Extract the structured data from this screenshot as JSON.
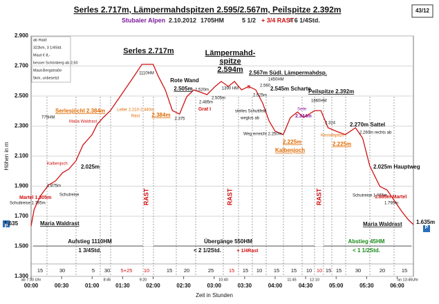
{
  "chart_data": {
    "type": "line",
    "title": "Serles 2.717m, Lämpermahdspitzen 2.595/2.567m, Peilspitze 2.392m",
    "subtitle_parts": [
      "Stubaier Alpen",
      "2.10.2012",
      "1705HM",
      "5 1/2",
      "+ 3/4 RAST",
      "= 6 1/4Std."
    ],
    "page_label": "43/12",
    "ylabel": "Höhen in m",
    "xlabel": "Zeit in Stunden",
    "color": "#d01010",
    "grid": true,
    "xlim": [
      0,
      376
    ],
    "xticks": [
      {
        "value": 0,
        "label": "00:00"
      },
      {
        "value": 30,
        "label": "00:30"
      },
      {
        "value": 60,
        "label": "01:00"
      },
      {
        "value": 90,
        "label": "01:30"
      },
      {
        "value": 120,
        "label": "02:00"
      },
      {
        "value": 150,
        "label": "02:30"
      },
      {
        "value": 180,
        "label": "03:00"
      },
      {
        "value": 210,
        "label": "03:30"
      },
      {
        "value": 240,
        "label": "04:00"
      },
      {
        "value": 270,
        "label": "04:30"
      },
      {
        "value": 300,
        "label": "05:00"
      },
      {
        "value": 330,
        "label": "05:30"
      },
      {
        "value": 360,
        "label": "06:00"
      }
    ],
    "ylim": [
      1300,
      2900
    ],
    "yticks": [
      {
        "value": 1300,
        "label": "1.300"
      },
      {
        "value": 1500,
        "label": "1.500"
      },
      {
        "value": 1700,
        "label": "1.700"
      },
      {
        "value": 1900,
        "label": "1.900"
      },
      {
        "value": 2100,
        "label": "2.100"
      },
      {
        "value": 2300,
        "label": "2.300"
      },
      {
        "value": 2500,
        "label": "2.500"
      },
      {
        "value": 2700,
        "label": "2.700"
      },
      {
        "value": 2900,
        "label": "2.900"
      }
    ],
    "x": [
      0,
      3,
      7,
      10,
      17,
      24,
      31,
      37,
      44,
      51,
      60,
      65,
      71,
      78,
      85,
      92,
      99,
      109,
      120,
      125,
      132,
      139,
      146,
      153,
      160,
      166,
      173,
      181,
      187,
      194,
      200,
      207,
      214,
      221,
      228,
      234,
      240,
      248,
      255,
      262,
      268,
      279,
      285,
      292,
      300,
      309,
      319,
      326,
      333,
      343,
      350,
      357,
      364,
      371,
      376
    ],
    "values": [
      1635,
      1746,
      1805,
      1843,
      1907,
      1935,
      1990,
      2013,
      2068,
      2174,
      2243,
      2312,
      2357,
      2403,
      2472,
      2541,
      2610,
      2711,
      2711,
      2633,
      2541,
      2403,
      2380,
      2495,
      2541,
      2527,
      2509,
      2564,
      2597,
      2564,
      2597,
      2541,
      2564,
      2541,
      2449,
      2334,
      2266,
      2243,
      2357,
      2394,
      2357,
      2403,
      2403,
      2289,
      2266,
      2243,
      2289,
      2220,
      2036,
      1898,
      1875,
      1806,
      1737,
      1677,
      1645
    ],
    "info_box": [
      "ab Haid:",
      "322km, 3 1/4Std.",
      "Maut € 8,-",
      "besser Schönberg ab 2,50",
      "Maut-Bergstraße",
      "5km, unbesetzt"
    ],
    "annotations": [
      "Serles 2.717m",
      "1110HM",
      "Lämpermahd-",
      "spitze",
      "2.594m",
      "1390 HM",
      "Rote Wand",
      "2.505m",
      "2.520m",
      "2.485m",
      "2.505m",
      "Grat I",
      "2.375",
      "2.384m",
      "Leiter 2.210-2.440m",
      "Rast",
      "Serlesjöchl 2.384m",
      "775HM",
      "Maria Waldrast",
      "Kalbenjoch",
      "2.025m",
      "1.875m",
      "Schutreise",
      "Martel 1.805m",
      "Schuttreise 1.795m",
      "1.635",
      "Maria Waldrast",
      "2.567m Südl. Lämpermahdsp.",
      "1450HM",
      "II",
      "2.525m",
      "2.560",
      "2.545m Scharte",
      "Peilspitze 2.392m",
      "1660HM",
      "Seile",
      "2.344m",
      "steiles Schuttfeld",
      "weglos ab",
      "Weg erreicht 2.250m",
      "2.225m",
      "Kalbenjoch",
      "2.324",
      "Kesselspitze",
      "2.225m",
      "2.270m Sattel",
      "2.260m rechts ab",
      "2.025m Hauptweg",
      "Schutreise 1.865m",
      "1.805m Martel",
      "1.795m",
      "Maria Waldrast",
      "1.635m",
      "P",
      "P",
      "Aufstieg 1110HM",
      "1 3/4Std.",
      "Übergänge 550HM",
      "< 2 1/2Std.",
      "+ 1/4Rast",
      "Abstieg 45HM",
      "< 1 1/2Std.",
      "RAST",
      "RAST",
      "RAST"
    ],
    "durations": [
      "15",
      "30",
      "5",
      "30",
      "5+25",
      "10",
      "15",
      "20",
      "25",
      "15",
      "15",
      "10",
      "15",
      "15",
      "10",
      "10",
      "15",
      "15",
      "30",
      "20",
      "15"
    ],
    "clock_labels": [
      "ab 7:30 Uhr",
      "8:45",
      "9:20",
      "10:40",
      "11:45",
      "12:10",
      "an 13:45Uhr"
    ]
  }
}
